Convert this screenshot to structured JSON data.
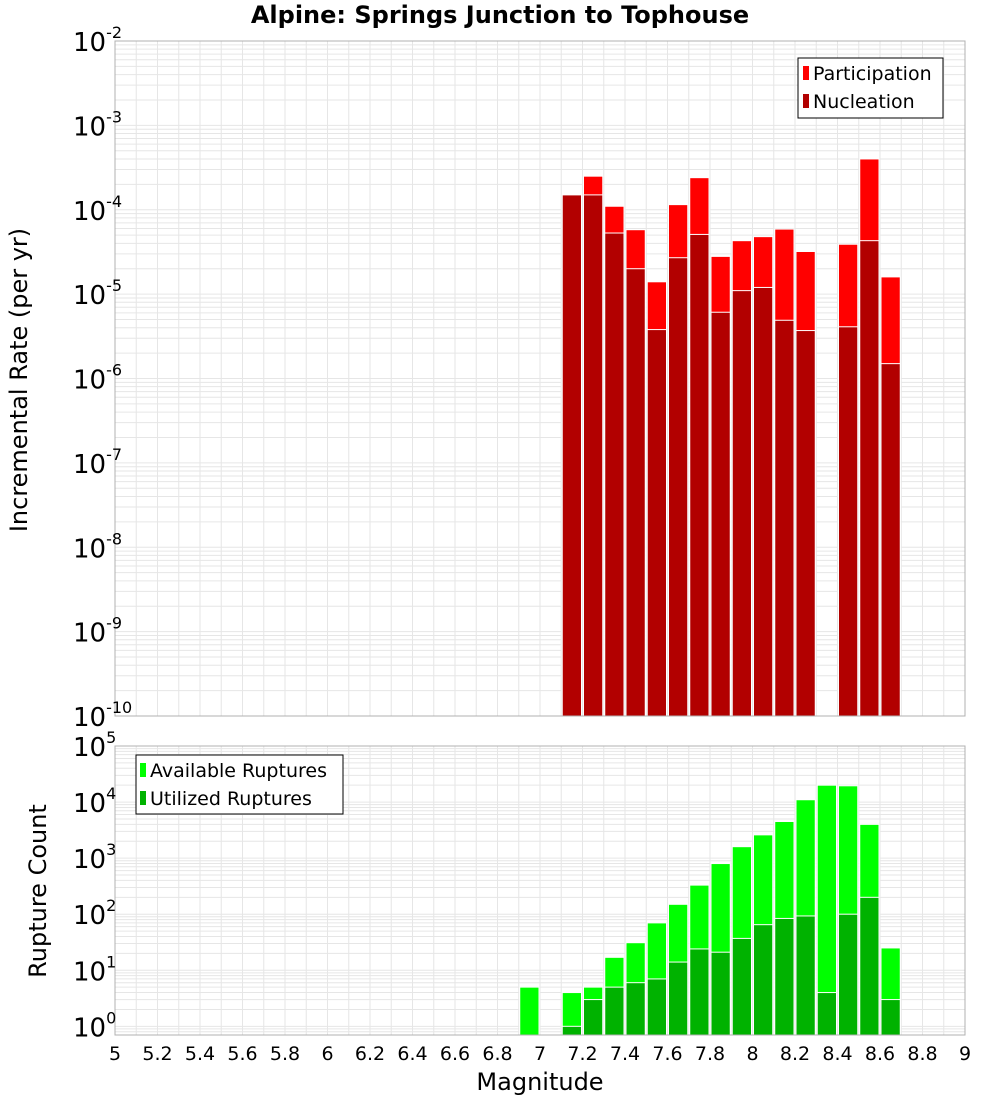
{
  "chart_data": [
    {
      "type": "bar",
      "title": "Alpine: Springs Junction to Tophouse",
      "xlabel": "",
      "ylabel": "Incremental Rate (per yr)",
      "yscale": "log",
      "ylim": [
        1e-10,
        0.01
      ],
      "xlim": [
        5,
        9
      ],
      "grid": true,
      "legend_position": "top-right",
      "x": [
        7.15,
        7.25,
        7.35,
        7.45,
        7.55,
        7.65,
        7.75,
        7.85,
        7.95,
        8.05,
        8.15,
        8.25,
        8.35,
        8.45,
        8.55,
        8.65
      ],
      "series": [
        {
          "name": "Participation",
          "color": "#ff0000",
          "values": [
            0.00015,
            0.00025,
            0.00011,
            5.8e-05,
            1.4e-05,
            0.000115,
            0.00024,
            2.8e-05,
            4.3e-05,
            4.8e-05,
            5.9e-05,
            3.2e-05,
            null,
            3.9e-05,
            0.0004,
            1.6e-05
          ]
        },
        {
          "name": "Nucleation",
          "color": "#b20000",
          "values": [
            0.00015,
            0.00015,
            5.3e-05,
            2e-05,
            3.8e-06,
            2.7e-05,
            5.1e-05,
            6.1e-06,
            1.1e-05,
            1.2e-05,
            4.9e-06,
            3.7e-06,
            null,
            4.1e-06,
            4.3e-05,
            1.5e-06
          ]
        }
      ]
    },
    {
      "type": "bar",
      "title": "",
      "xlabel": "Magnitude",
      "ylabel": "Rupture Count",
      "yscale": "log",
      "ylim": [
        0.7,
        100000.0
      ],
      "xlim": [
        5,
        9
      ],
      "grid": true,
      "legend_position": "top-left",
      "x": [
        6.95,
        7.15,
        7.25,
        7.35,
        7.45,
        7.55,
        7.65,
        7.75,
        7.85,
        7.95,
        8.05,
        8.15,
        8.25,
        8.35,
        8.45,
        8.55,
        8.65
      ],
      "series": [
        {
          "name": "Available Ruptures",
          "color": "#00ff00",
          "values": [
            5,
            4,
            5,
            17,
            31,
            70,
            150,
            330,
            800,
            1600,
            2600,
            4500,
            11000,
            20000,
            19500,
            4000,
            25
          ]
        },
        {
          "name": "Utilized Ruptures",
          "color": "#00b200",
          "values": [
            null,
            1,
            3,
            5,
            6,
            7,
            14,
            24,
            21,
            37,
            65,
            84,
            93,
            4,
            100,
            200,
            3
          ]
        }
      ]
    }
  ],
  "x_ticks": [
    "5",
    "5.2",
    "5.4",
    "5.6",
    "5.8",
    "6",
    "6.2",
    "6.4",
    "6.6",
    "6.8",
    "7",
    "7.2",
    "7.4",
    "7.6",
    "7.8",
    "8",
    "8.2",
    "8.4",
    "8.6",
    "8.8",
    "9"
  ],
  "top_y_ticks": [
    {
      "base": "10",
      "exp": "-10",
      "value": 1e-10
    },
    {
      "base": "10",
      "exp": "-9",
      "value": 1e-09
    },
    {
      "base": "10",
      "exp": "-8",
      "value": 1e-08
    },
    {
      "base": "10",
      "exp": "-7",
      "value": 1e-07
    },
    {
      "base": "10",
      "exp": "-6",
      "value": 1e-06
    },
    {
      "base": "10",
      "exp": "-5",
      "value": 1e-05
    },
    {
      "base": "10",
      "exp": "-4",
      "value": 0.0001
    },
    {
      "base": "10",
      "exp": "-3",
      "value": 0.001
    },
    {
      "base": "10",
      "exp": "-2",
      "value": 0.01
    }
  ],
  "bottom_y_ticks": [
    {
      "base": "10",
      "exp": "0",
      "value": 1
    },
    {
      "base": "10",
      "exp": "1",
      "value": 10
    },
    {
      "base": "10",
      "exp": "2",
      "value": 100
    },
    {
      "base": "10",
      "exp": "3",
      "value": 1000
    },
    {
      "base": "10",
      "exp": "4",
      "value": 10000
    },
    {
      "base": "10",
      "exp": "5",
      "value": 100000
    }
  ],
  "colors": {
    "grid": "#e6e6e6",
    "frame": "#b0b0b0",
    "bar_gap": "#ffffff"
  }
}
